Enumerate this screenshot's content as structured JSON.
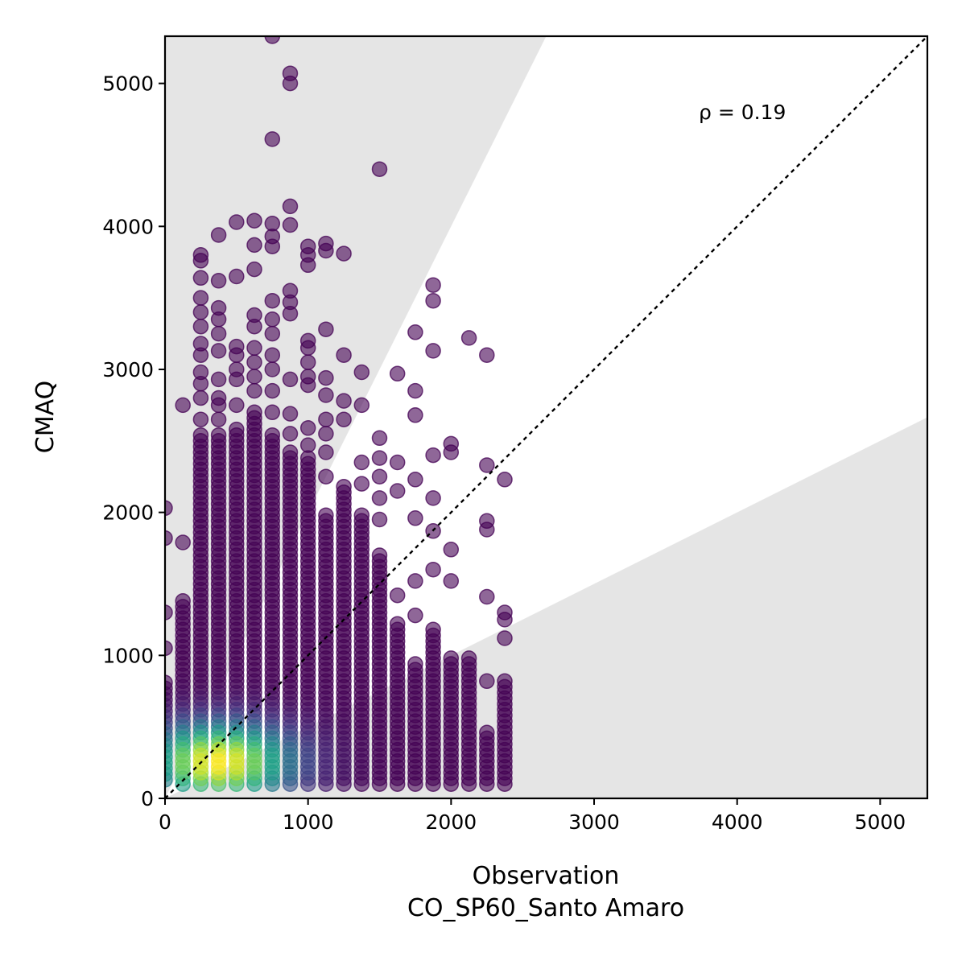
{
  "chart_data": {
    "type": "scatter",
    "title": "",
    "xlabel": "Observation",
    "xlabel_line2": "CO_SP60_Santo Amaro",
    "ylabel": "CMAQ",
    "annotation": "ρ = 0.19",
    "xlim": [
      0,
      5330
    ],
    "ylim": [
      0,
      5330
    ],
    "xticks": [
      0,
      1000,
      2000,
      3000,
      4000,
      5000
    ],
    "yticks": [
      0,
      1000,
      2000,
      3000,
      4000,
      5000
    ],
    "xtick_labels": [
      "0",
      "1000",
      "2000",
      "3000",
      "4000",
      "5000"
    ],
    "ytick_labels": [
      "0",
      "1000",
      "2000",
      "3000",
      "4000",
      "5000"
    ],
    "identity_line": true,
    "shaded_regions": [
      {
        "description": "above factor-of-2 line",
        "slope": 2
      },
      {
        "description": "below factor-of-0.5 line",
        "slope": 0.5
      }
    ],
    "colormap": "viridis",
    "grid": false,
    "legend": "none",
    "x_levels": [
      0,
      125,
      250,
      375,
      500,
      625,
      750,
      875,
      1000,
      1125,
      1250,
      1375,
      1500,
      1625,
      1750,
      1875,
      2000,
      2125,
      2250,
      2375
    ],
    "columns": [
      {
        "x": 0,
        "y_min": 130,
        "y_max": 830,
        "outliers": [
          1050,
          1300,
          1820,
          2030
        ]
      },
      {
        "x": 125,
        "y_min": 100,
        "y_max": 1380,
        "outliers": [
          1790,
          2750
        ]
      },
      {
        "x": 250,
        "y_min": 100,
        "y_max": 2550,
        "outliers": [
          2650,
          2800,
          2900,
          2980,
          3100,
          3180,
          3300,
          3400,
          3500,
          3640,
          3760,
          3800
        ]
      },
      {
        "x": 375,
        "y_min": 100,
        "y_max": 2550,
        "outliers": [
          2650,
          2750,
          2800,
          2930,
          3130,
          3250,
          3350,
          3430,
          3620,
          3940
        ]
      },
      {
        "x": 500,
        "y_min": 100,
        "y_max": 2580,
        "outliers": [
          2750,
          2930,
          3000,
          3100,
          3160,
          3650,
          4030
        ]
      },
      {
        "x": 625,
        "y_min": 100,
        "y_max": 2700,
        "outliers": [
          2850,
          2950,
          3050,
          3150,
          3300,
          3380,
          3700,
          3870,
          4040
        ]
      },
      {
        "x": 750,
        "y_min": 100,
        "y_max": 2550,
        "outliers": [
          2700,
          2850,
          3000,
          3100,
          3250,
          3350,
          3480,
          3860,
          3930,
          4020,
          4610,
          5330
        ]
      },
      {
        "x": 875,
        "y_min": 100,
        "y_max": 2450,
        "outliers": [
          2550,
          2690,
          2930,
          3390,
          3470,
          3550,
          4010,
          4140,
          5000,
          5070
        ]
      },
      {
        "x": 1000,
        "y_min": 100,
        "y_max": 2380,
        "outliers": [
          2470,
          2590,
          2890,
          2950,
          3050,
          3150,
          3200,
          3730,
          3800,
          3860
        ]
      },
      {
        "x": 1125,
        "y_min": 100,
        "y_max": 2000,
        "outliers": [
          2250,
          2420,
          2550,
          2650,
          2820,
          2940,
          3280,
          3830,
          3880
        ]
      },
      {
        "x": 1250,
        "y_min": 100,
        "y_max": 2200,
        "outliers": [
          2650,
          2780,
          3100,
          3810
        ]
      },
      {
        "x": 1375,
        "y_min": 100,
        "y_max": 2000,
        "outliers": [
          2200,
          2350,
          2750,
          2980
        ]
      },
      {
        "x": 1500,
        "y_min": 100,
        "y_max": 1700,
        "outliers": [
          1950,
          2100,
          2250,
          2380,
          2520,
          4400
        ]
      },
      {
        "x": 1625,
        "y_min": 100,
        "y_max": 1230,
        "outliers": [
          1420,
          2150,
          2350,
          2970
        ]
      },
      {
        "x": 1750,
        "y_min": 100,
        "y_max": 950,
        "outliers": [
          1280,
          1520,
          1960,
          2230,
          2680,
          2850,
          3260
        ]
      },
      {
        "x": 1875,
        "y_min": 100,
        "y_max": 1200,
        "outliers": [
          1600,
          1870,
          2100,
          2400,
          3130,
          3480,
          3590
        ]
      },
      {
        "x": 2000,
        "y_min": 100,
        "y_max": 1000,
        "outliers": [
          1520,
          1740,
          2420,
          2480
        ]
      },
      {
        "x": 2125,
        "y_min": 100,
        "y_max": 1000,
        "outliers": [
          3220
        ]
      },
      {
        "x": 2250,
        "y_min": 100,
        "y_max": 480,
        "outliers": [
          820,
          1410,
          1880,
          1940,
          2330,
          3100
        ]
      },
      {
        "x": 2375,
        "y_min": 100,
        "y_max": 850,
        "outliers": [
          1120,
          1250,
          1300,
          2230
        ]
      }
    ],
    "density_peak": {
      "x": 375,
      "y": 250
    }
  }
}
